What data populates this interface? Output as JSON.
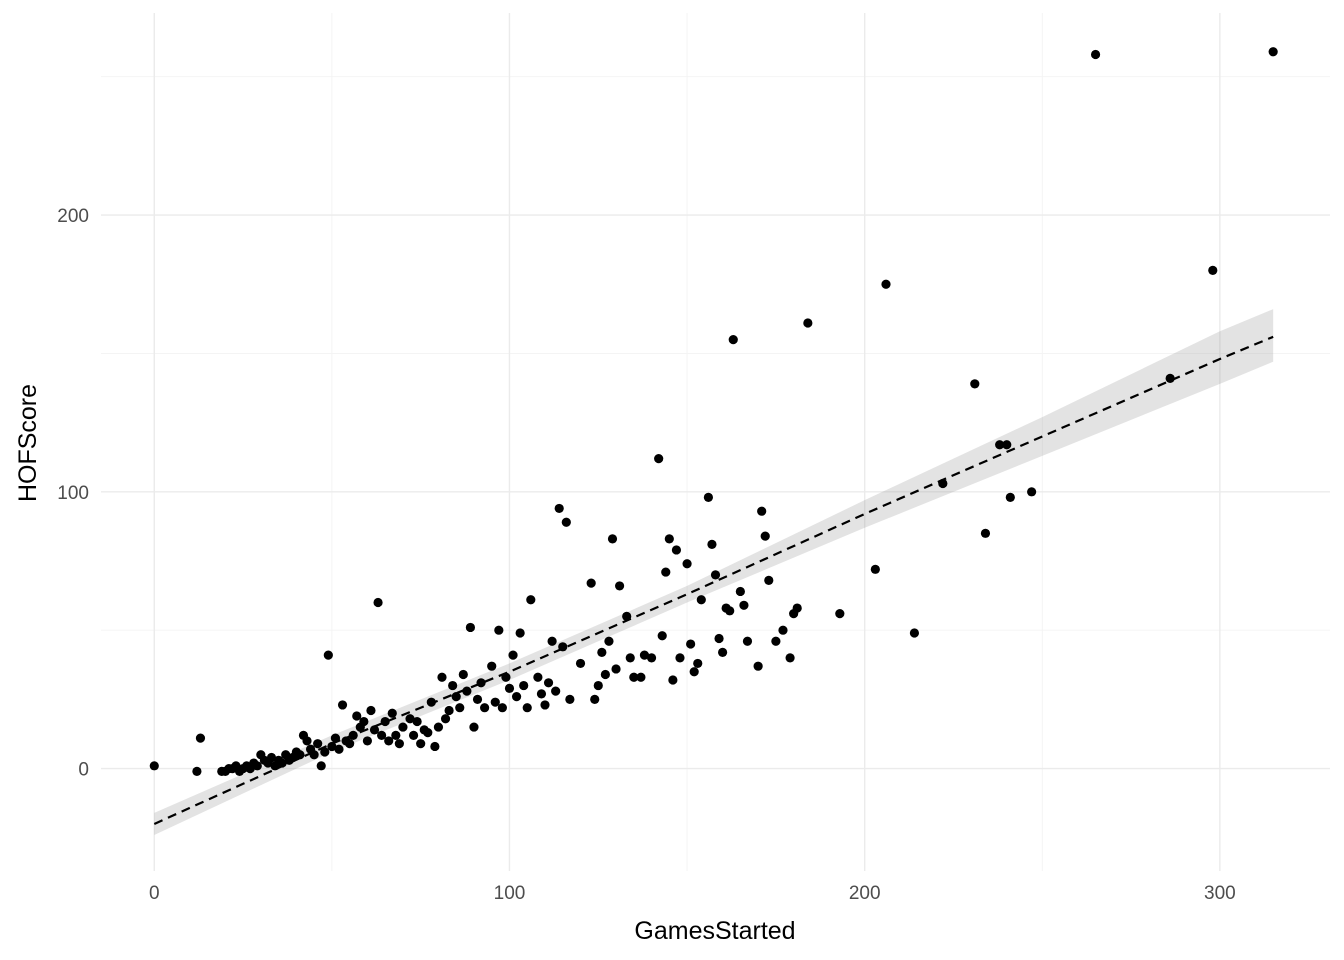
{
  "chart_data": {
    "type": "scatter",
    "xlabel": "GamesStarted",
    "ylabel": "HOFScore",
    "xlim": [
      -15,
      331
    ],
    "ylim": [
      -37,
      273
    ],
    "x_ticks": [
      0,
      100,
      200,
      300
    ],
    "y_ticks": [
      0,
      100,
      200
    ],
    "x_tick_labels": [
      "0",
      "100",
      "200",
      "300"
    ],
    "y_tick_labels": [
      "0",
      "100",
      "200"
    ],
    "grid": true,
    "point_color": "#000000",
    "smooth": {
      "method": "lm",
      "line_style": "dashed",
      "line_color": "#000000",
      "band_color": "#999999",
      "x": [
        0,
        50,
        100,
        150,
        200,
        250,
        300,
        315
      ],
      "y": [
        -20,
        9,
        35,
        63,
        92,
        120,
        148,
        156
      ],
      "lower": [
        -24,
        6,
        32,
        60,
        87,
        113,
        139,
        147
      ],
      "upper": [
        -16,
        12,
        38,
        66,
        97,
        127,
        158,
        166
      ]
    },
    "points": [
      [
        0,
        1
      ],
      [
        12,
        -1
      ],
      [
        13,
        11
      ],
      [
        19,
        -1
      ],
      [
        20,
        -1
      ],
      [
        21,
        0
      ],
      [
        22,
        0
      ],
      [
        23,
        1
      ],
      [
        24,
        -1
      ],
      [
        25,
        0
      ],
      [
        26,
        1
      ],
      [
        27,
        0
      ],
      [
        28,
        2
      ],
      [
        29,
        1
      ],
      [
        30,
        5
      ],
      [
        31,
        3
      ],
      [
        32,
        2
      ],
      [
        33,
        4
      ],
      [
        34,
        1
      ],
      [
        35,
        3
      ],
      [
        36,
        2
      ],
      [
        37,
        5
      ],
      [
        38,
        3
      ],
      [
        39,
        4
      ],
      [
        40,
        6
      ],
      [
        41,
        5
      ],
      [
        42,
        12
      ],
      [
        43,
        10
      ],
      [
        44,
        7
      ],
      [
        45,
        5
      ],
      [
        46,
        9
      ],
      [
        47,
        1
      ],
      [
        48,
        6
      ],
      [
        49,
        41
      ],
      [
        50,
        8
      ],
      [
        51,
        11
      ],
      [
        52,
        7
      ],
      [
        53,
        23
      ],
      [
        54,
        10
      ],
      [
        55,
        9
      ],
      [
        56,
        12
      ],
      [
        57,
        19
      ],
      [
        58,
        15
      ],
      [
        59,
        17
      ],
      [
        60,
        10
      ],
      [
        61,
        21
      ],
      [
        62,
        14
      ],
      [
        63,
        60
      ],
      [
        64,
        12
      ],
      [
        65,
        17
      ],
      [
        66,
        10
      ],
      [
        67,
        20
      ],
      [
        68,
        12
      ],
      [
        69,
        9
      ],
      [
        70,
        15
      ],
      [
        72,
        18
      ],
      [
        73,
        12
      ],
      [
        74,
        17
      ],
      [
        75,
        9
      ],
      [
        76,
        14
      ],
      [
        77,
        13
      ],
      [
        78,
        24
      ],
      [
        79,
        8
      ],
      [
        80,
        15
      ],
      [
        81,
        33
      ],
      [
        82,
        18
      ],
      [
        83,
        21
      ],
      [
        84,
        30
      ],
      [
        85,
        26
      ],
      [
        86,
        22
      ],
      [
        87,
        34
      ],
      [
        88,
        28
      ],
      [
        89,
        51
      ],
      [
        90,
        15
      ],
      [
        91,
        25
      ],
      [
        92,
        31
      ],
      [
        93,
        22
      ],
      [
        95,
        37
      ],
      [
        96,
        24
      ],
      [
        97,
        50
      ],
      [
        98,
        22
      ],
      [
        99,
        33
      ],
      [
        100,
        29
      ],
      [
        101,
        41
      ],
      [
        102,
        26
      ],
      [
        103,
        49
      ],
      [
        104,
        30
      ],
      [
        105,
        22
      ],
      [
        106,
        61
      ],
      [
        108,
        33
      ],
      [
        109,
        27
      ],
      [
        110,
        23
      ],
      [
        111,
        31
      ],
      [
        112,
        46
      ],
      [
        113,
        28
      ],
      [
        114,
        94
      ],
      [
        115,
        44
      ],
      [
        116,
        89
      ],
      [
        117,
        25
      ],
      [
        120,
        38
      ],
      [
        123,
        67
      ],
      [
        124,
        25
      ],
      [
        125,
        30
      ],
      [
        126,
        42
      ],
      [
        127,
        34
      ],
      [
        128,
        46
      ],
      [
        129,
        83
      ],
      [
        130,
        36
      ],
      [
        131,
        66
      ],
      [
        133,
        55
      ],
      [
        134,
        40
      ],
      [
        135,
        33
      ],
      [
        137,
        33
      ],
      [
        138,
        41
      ],
      [
        140,
        40
      ],
      [
        142,
        112
      ],
      [
        143,
        48
      ],
      [
        144,
        71
      ],
      [
        145,
        83
      ],
      [
        146,
        32
      ],
      [
        147,
        79
      ],
      [
        148,
        40
      ],
      [
        150,
        74
      ],
      [
        151,
        45
      ],
      [
        152,
        35
      ],
      [
        153,
        38
      ],
      [
        154,
        61
      ],
      [
        156,
        98
      ],
      [
        157,
        81
      ],
      [
        158,
        70
      ],
      [
        159,
        47
      ],
      [
        160,
        42
      ],
      [
        161,
        58
      ],
      [
        162,
        57
      ],
      [
        163,
        155
      ],
      [
        165,
        64
      ],
      [
        166,
        59
      ],
      [
        167,
        46
      ],
      [
        170,
        37
      ],
      [
        171,
        93
      ],
      [
        172,
        84
      ],
      [
        173,
        68
      ],
      [
        175,
        46
      ],
      [
        177,
        50
      ],
      [
        179,
        40
      ],
      [
        180,
        56
      ],
      [
        181,
        58
      ],
      [
        184,
        161
      ],
      [
        193,
        56
      ],
      [
        203,
        72
      ],
      [
        206,
        175
      ],
      [
        214,
        49
      ],
      [
        222,
        103
      ],
      [
        231,
        139
      ],
      [
        234,
        85
      ],
      [
        238,
        117
      ],
      [
        240,
        117
      ],
      [
        241,
        98
      ],
      [
        247,
        100
      ],
      [
        265,
        258
      ],
      [
        286,
        141
      ],
      [
        298,
        180
      ],
      [
        315,
        259
      ]
    ]
  }
}
